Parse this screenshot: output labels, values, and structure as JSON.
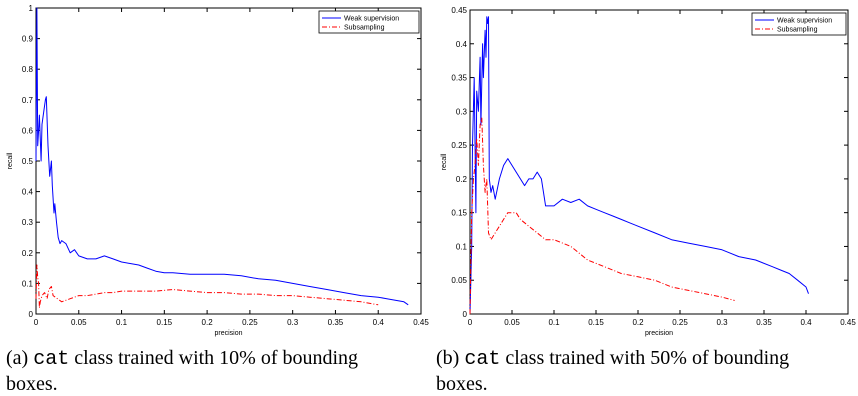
{
  "chart_data": [
    {
      "type": "line",
      "xlabel": "precision",
      "ylabel": "recall",
      "xlim": [
        0,
        0.45
      ],
      "ylim": [
        0,
        1
      ],
      "xticks": [
        "0",
        "0.05",
        "0.1",
        "0.15",
        "0.2",
        "0.25",
        "0.3",
        "0.35",
        "0.4",
        "0.45"
      ],
      "yticks": [
        "0",
        "0.1",
        "0.2",
        "0.3",
        "0.4",
        "0.5",
        "0.6",
        "0.7",
        "0.8",
        "0.9",
        "1"
      ],
      "legend_position": "top-right",
      "series": [
        {
          "name": "Weak supervision",
          "color": "#0000ff",
          "style": "solid",
          "x": [
            0.0,
            0.001,
            0.002,
            0.003,
            0.004,
            0.006,
            0.007,
            0.009,
            0.011,
            0.012,
            0.014,
            0.016,
            0.018,
            0.019,
            0.021,
            0.022,
            0.024,
            0.026,
            0.028,
            0.03,
            0.035,
            0.04,
            0.045,
            0.05,
            0.06,
            0.07,
            0.08,
            0.09,
            0.1,
            0.11,
            0.12,
            0.13,
            0.14,
            0.15,
            0.16,
            0.18,
            0.2,
            0.22,
            0.24,
            0.26,
            0.28,
            0.3,
            0.32,
            0.34,
            0.36,
            0.38,
            0.4,
            0.41,
            0.42,
            0.43,
            0.435
          ],
          "y": [
            0.5,
            1.0,
            0.55,
            0.6,
            0.65,
            0.5,
            0.62,
            0.66,
            0.7,
            0.71,
            0.55,
            0.45,
            0.5,
            0.42,
            0.33,
            0.36,
            0.3,
            0.25,
            0.23,
            0.24,
            0.23,
            0.2,
            0.21,
            0.19,
            0.18,
            0.18,
            0.19,
            0.18,
            0.17,
            0.165,
            0.16,
            0.15,
            0.14,
            0.135,
            0.135,
            0.13,
            0.13,
            0.13,
            0.125,
            0.115,
            0.11,
            0.1,
            0.09,
            0.08,
            0.07,
            0.06,
            0.055,
            0.05,
            0.045,
            0.04,
            0.03
          ]
        },
        {
          "name": "Subsampling",
          "color": "#ff0000",
          "style": "dashdot",
          "x": [
            0.0,
            0.001,
            0.002,
            0.003,
            0.004,
            0.005,
            0.007,
            0.01,
            0.013,
            0.015,
            0.018,
            0.02,
            0.025,
            0.03,
            0.04,
            0.05,
            0.06,
            0.07,
            0.08,
            0.09,
            0.1,
            0.12,
            0.14,
            0.16,
            0.18,
            0.2,
            0.22,
            0.24,
            0.26,
            0.28,
            0.3,
            0.32,
            0.34,
            0.36,
            0.38,
            0.4
          ],
          "y": [
            0.05,
            0.16,
            0.12,
            0.1,
            0.02,
            0.04,
            0.06,
            0.07,
            0.05,
            0.08,
            0.09,
            0.06,
            0.05,
            0.04,
            0.05,
            0.06,
            0.06,
            0.065,
            0.07,
            0.07,
            0.075,
            0.075,
            0.075,
            0.08,
            0.075,
            0.07,
            0.07,
            0.065,
            0.065,
            0.06,
            0.06,
            0.055,
            0.05,
            0.045,
            0.04,
            0.03
          ]
        }
      ]
    },
    {
      "type": "line",
      "xlabel": "precision",
      "ylabel": "recall",
      "xlim": [
        0,
        0.45
      ],
      "ylim": [
        0,
        0.45
      ],
      "xticks": [
        "0",
        "0.05",
        "0.1",
        "0.15",
        "0.2",
        "0.25",
        "0.3",
        "0.35",
        "0.4",
        "0.45"
      ],
      "yticks": [
        "0",
        "0.05",
        "0.1",
        "0.15",
        "0.2",
        "0.25",
        "0.3",
        "0.35",
        "0.4",
        "0.45"
      ],
      "legend_position": "top-right",
      "series": [
        {
          "name": "Weak supervision",
          "color": "#0000ff",
          "style": "solid",
          "x": [
            0.0,
            0.002,
            0.003,
            0.005,
            0.007,
            0.008,
            0.01,
            0.012,
            0.013,
            0.015,
            0.016,
            0.018,
            0.019,
            0.02,
            0.021,
            0.022,
            0.023,
            0.025,
            0.027,
            0.03,
            0.035,
            0.04,
            0.045,
            0.05,
            0.055,
            0.06,
            0.065,
            0.07,
            0.075,
            0.08,
            0.085,
            0.09,
            0.1,
            0.11,
            0.12,
            0.13,
            0.14,
            0.15,
            0.16,
            0.17,
            0.18,
            0.19,
            0.2,
            0.22,
            0.24,
            0.26,
            0.28,
            0.3,
            0.32,
            0.34,
            0.36,
            0.37,
            0.38,
            0.39,
            0.4,
            0.403
          ],
          "y": [
            0.0,
            0.1,
            0.25,
            0.35,
            0.15,
            0.33,
            0.3,
            0.38,
            0.28,
            0.4,
            0.35,
            0.42,
            0.38,
            0.44,
            0.43,
            0.44,
            0.2,
            0.18,
            0.19,
            0.17,
            0.2,
            0.22,
            0.23,
            0.22,
            0.21,
            0.2,
            0.19,
            0.2,
            0.2,
            0.21,
            0.2,
            0.16,
            0.16,
            0.17,
            0.165,
            0.17,
            0.16,
            0.155,
            0.15,
            0.145,
            0.14,
            0.135,
            0.13,
            0.12,
            0.11,
            0.105,
            0.1,
            0.095,
            0.085,
            0.08,
            0.07,
            0.065,
            0.06,
            0.05,
            0.04,
            0.03
          ]
        },
        {
          "name": "Subsampling",
          "color": "#ff0000",
          "style": "dashdot",
          "x": [
            0.0,
            0.002,
            0.004,
            0.006,
            0.008,
            0.01,
            0.012,
            0.014,
            0.016,
            0.018,
            0.02,
            0.022,
            0.025,
            0.03,
            0.035,
            0.04,
            0.045,
            0.05,
            0.055,
            0.06,
            0.07,
            0.08,
            0.09,
            0.1,
            0.12,
            0.14,
            0.16,
            0.18,
            0.2,
            0.22,
            0.24,
            0.26,
            0.28,
            0.3,
            0.315
          ],
          "y": [
            0.0,
            0.15,
            0.2,
            0.22,
            0.26,
            0.22,
            0.28,
            0.29,
            0.22,
            0.18,
            0.2,
            0.12,
            0.11,
            0.12,
            0.13,
            0.14,
            0.15,
            0.15,
            0.15,
            0.14,
            0.13,
            0.12,
            0.11,
            0.11,
            0.1,
            0.08,
            0.07,
            0.06,
            0.055,
            0.05,
            0.04,
            0.035,
            0.03,
            0.025,
            0.02
          ]
        }
      ]
    }
  ],
  "captions": {
    "a": {
      "prefix": "(a) ",
      "code": "cat",
      "line1": " class trained with 10% of bounding",
      "line2": "boxes."
    },
    "b": {
      "prefix": "(b) ",
      "code": "cat",
      "line1": " class trained with 50% of bounding",
      "line2": "boxes."
    }
  }
}
